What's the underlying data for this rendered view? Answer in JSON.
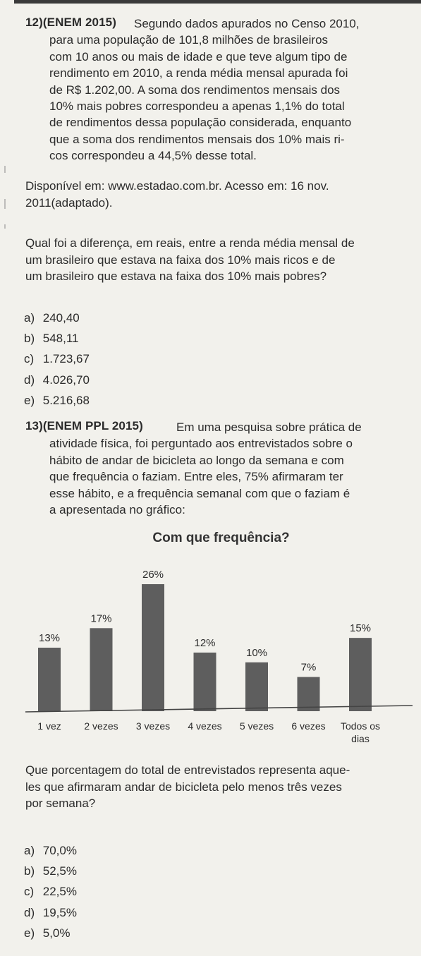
{
  "q12": {
    "number": "12)",
    "header": "(ENEM 2015)",
    "lines": [
      "Segundo dados apurados no Censo 2010,",
      "para uma população de 101,8 milhões de brasileiros",
      "com 10 anos ou mais de idade e que teve algum tipo de",
      "rendimento em 2010, a renda média mensal apurada foi",
      "de R$ 1.202,00. A soma dos rendimentos mensais dos",
      "10% mais pobres correspondeu a apenas 1,1% do total",
      "de rendimentos dessa população considerada, enquanto",
      "que a soma dos rendimentos mensais dos 10% mais ri-",
      "cos correspondeu a 44,5% desse total."
    ],
    "source_lines": [
      "Disponível em: www.estadao.com.br. Acesso em: 16 nov.",
      "2011(adaptado)."
    ],
    "question_lines": [
      "Qual foi a diferença, em reais, entre a renda média mensal de",
      "um brasileiro que estava na faixa dos 10% mais ricos e de",
      "um brasileiro que estava na faixa dos 10% mais pobres?"
    ],
    "options": [
      {
        "letter": "a)",
        "text": "240,40"
      },
      {
        "letter": "b)",
        "text": "548,11"
      },
      {
        "letter": "c)",
        "text": "1.723,67"
      },
      {
        "letter": "d)",
        "text": "4.026,70"
      },
      {
        "letter": "e)",
        "text": "5.216,68"
      }
    ]
  },
  "q13": {
    "number": "13)",
    "header": "(ENEM PPL 2015)",
    "lines": [
      "Em uma pesquisa sobre prática de",
      "atividade física, foi perguntado aos entrevistados sobre o",
      "hábito de andar de bicicleta ao longo da semana e com",
      "que frequência o faziam. Entre eles, 75% afirmaram ter",
      "esse hábito, e a frequência semanal com que o faziam é",
      "a apresentada no gráfico:"
    ],
    "question_lines": [
      "Que porcentagem do total de entrevistados representa aque-",
      "les que afirmaram andar de bicicleta pelo menos três vezes",
      "por semana?"
    ],
    "options": [
      {
        "letter": "a)",
        "text": "70,0%"
      },
      {
        "letter": "b)",
        "text": "52,5%"
      },
      {
        "letter": "c)",
        "text": "22,5%"
      },
      {
        "letter": "d)",
        "text": "19,5%"
      },
      {
        "letter": "e)",
        "text": "5,0%"
      }
    ]
  },
  "chart_data": {
    "type": "bar",
    "title": "Com que frequência?",
    "categories": [
      "1 vez",
      "2 vezes",
      "3 vezes",
      "4 vezes",
      "5 vezes",
      "6 vezes",
      "Todos os dias"
    ],
    "category_lines": [
      [
        "1 vez"
      ],
      [
        "2 vezes"
      ],
      [
        "3 vezes"
      ],
      [
        "4 vezes"
      ],
      [
        "5 vezes"
      ],
      [
        "6 vezes"
      ],
      [
        "Todos os",
        "dias"
      ]
    ],
    "values": [
      13,
      17,
      26,
      12,
      10,
      7,
      15
    ],
    "value_labels": [
      "13%",
      "17%",
      "26%",
      "12%",
      "10%",
      "7%",
      "15%"
    ],
    "ylim": [
      0,
      26
    ],
    "xlabel": "",
    "ylabel": "",
    "grid": false,
    "bar_color": "#5e5e5e",
    "axis_color": "#444444"
  }
}
